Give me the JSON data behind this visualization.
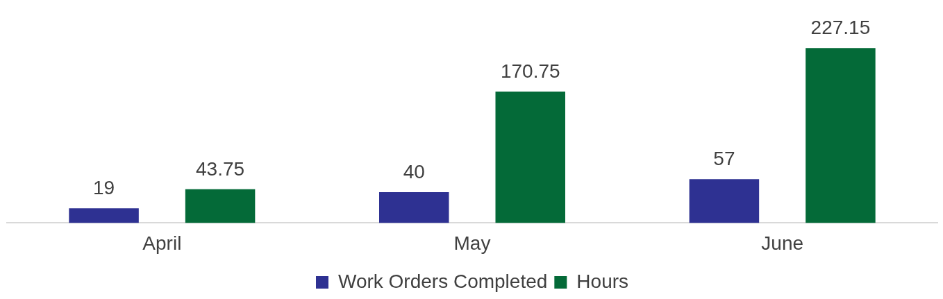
{
  "chart_data": {
    "type": "bar",
    "categories": [
      "April",
      "May",
      "June"
    ],
    "series": [
      {
        "name": "Work Orders Completed",
        "color": "#2e3192",
        "values": [
          19,
          40,
          57
        ]
      },
      {
        "name": "Hours",
        "color": "#046a38",
        "values": [
          43.75,
          170.75,
          227.15
        ]
      }
    ],
    "tick_labels": "x",
    "grid": false,
    "legend": "bottom",
    "data_labels": true
  }
}
